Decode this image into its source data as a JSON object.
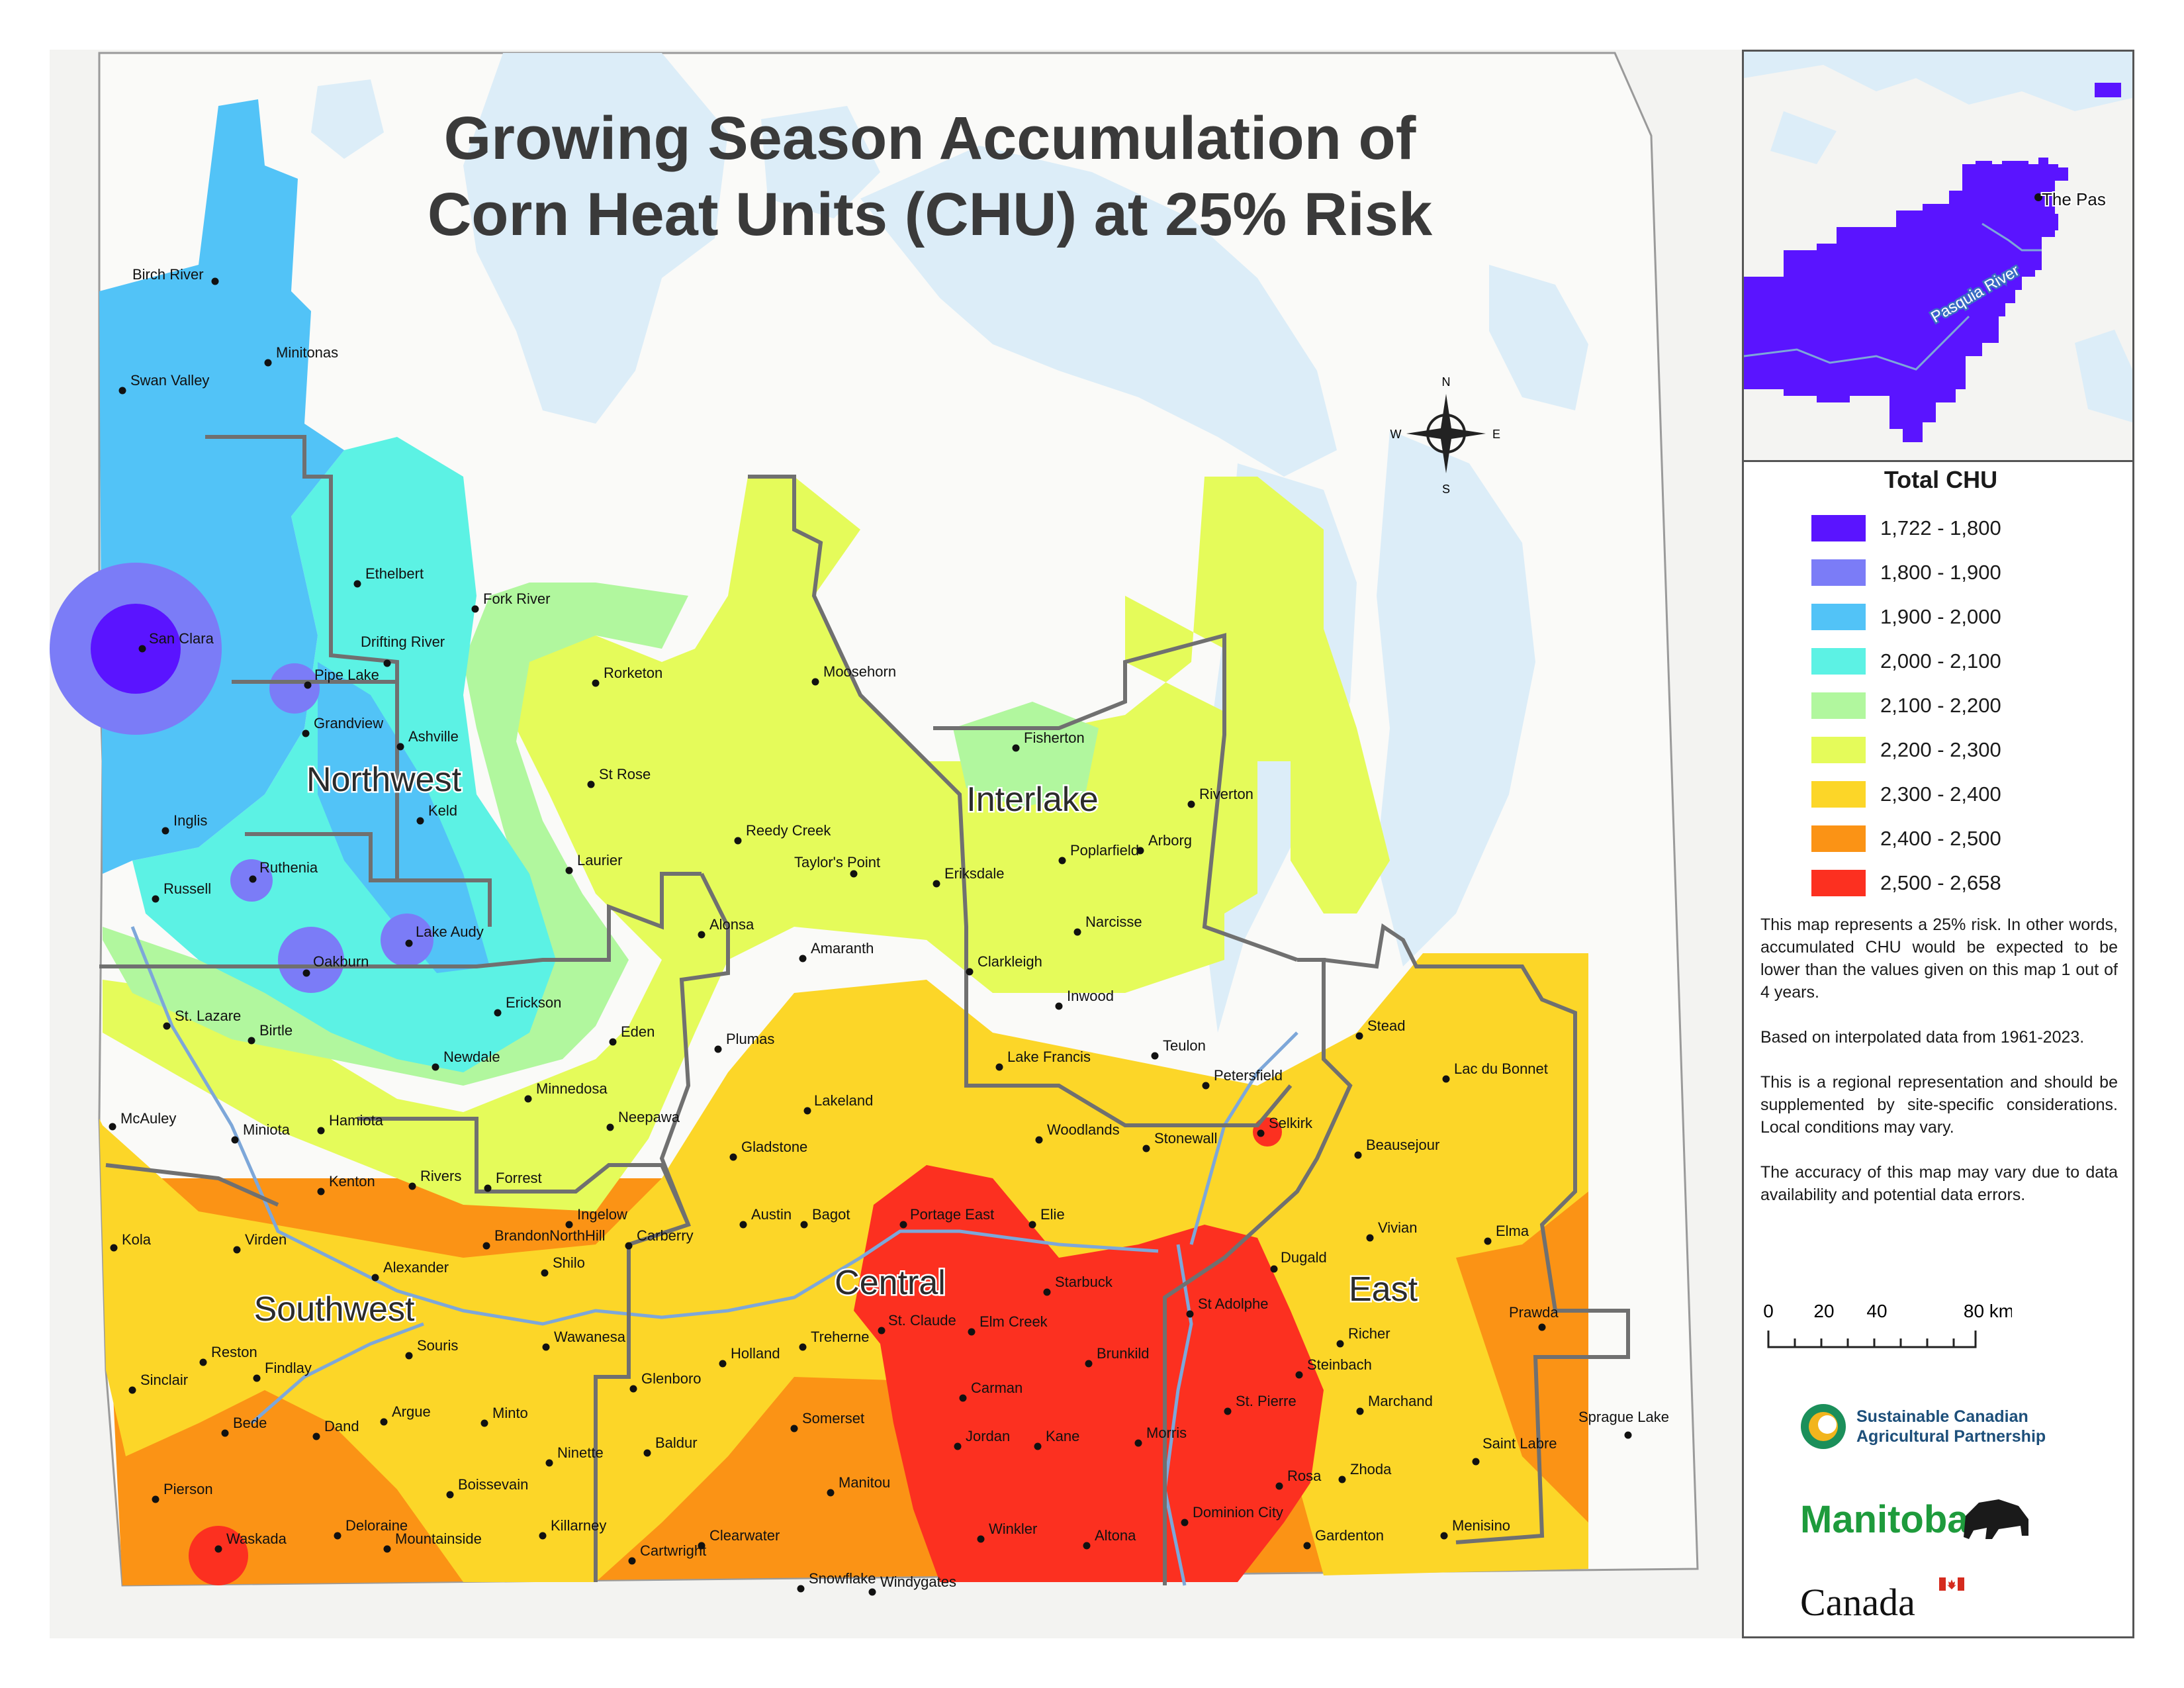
{
  "map": {
    "title_line1": "Growing Season Accumulation of",
    "title_line2": "Corn Heat Units (CHU) at 25% Risk",
    "compass": {
      "n": "N",
      "s": "S",
      "e": "E",
      "w": "W"
    },
    "regions": [
      {
        "label": "Northwest"
      },
      {
        "label": "Interlake"
      },
      {
        "label": "Central"
      },
      {
        "label": "Southwest"
      },
      {
        "label": "East"
      }
    ],
    "cities": [
      "Birch River",
      "Minitonas",
      "Swan Valley",
      "Ethelbert",
      "Fork River",
      "San Clara",
      "Drifting River",
      "Pipe Lake",
      "Rorketon",
      "Moosehorn",
      "Grandview",
      "Ashville",
      "St Rose",
      "Fisherton",
      "Riverton",
      "Keld",
      "Inglis",
      "Reedy Creek",
      "Taylor's Point",
      "Laurier",
      "Eriksdale",
      "Poplarfield",
      "Arborg",
      "Ruthenia",
      "Russell",
      "Lake Audy",
      "Alonsa",
      "Narcisse",
      "Oakburn",
      "Amaranth",
      "Clarkleigh",
      "Erickson",
      "Inwood",
      "St. Lazare",
      "Birtle",
      "Eden",
      "Plumas",
      "Stead",
      "Teulon",
      "Newdale",
      "Lake Francis",
      "Petersfield",
      "Lac du Bonnet",
      "Minnedosa",
      "Lakeland",
      "McAuley",
      "Neepawa",
      "Selkirk",
      "Miniota",
      "Hamiota",
      "Woodlands",
      "Gladstone",
      "Stonewall",
      "Beausejour",
      "Rivers",
      "Forrest",
      "Kenton",
      "Ingelow",
      "Austin",
      "Bagot",
      "Portage East",
      "Elie",
      "Vivian",
      "Elma",
      "Kola",
      "Virden",
      "BrandonNorthHill",
      "Carberry",
      "Dugald",
      "Alexander",
      "Shilo",
      "Starbuck",
      "St Adolphe",
      "Prawda",
      "Elm Creek",
      "St. Claude",
      "Wawanesa",
      "Treherne",
      "Richer",
      "Reston",
      "Souris",
      "Brunkild",
      "Holland",
      "Steinbach",
      "Findlay",
      "Glenboro",
      "Sinclair",
      "Carman",
      "St. Pierre",
      "Argue",
      "Minto",
      "Somerset",
      "Marchand",
      "Bede",
      "Dand",
      "Sprague Lake",
      "Morris",
      "Jordan",
      "Kane",
      "Baldur",
      "Ninette",
      "Saint Labre",
      "Pierson",
      "Boissevain",
      "Manitou",
      "Rosa",
      "Zhoda",
      "Dominion City",
      "Deloraine",
      "Menisino",
      "Killarney",
      "Winkler",
      "Altona",
      "Waskada",
      "Mountainside",
      "Clearwater",
      "Gardenton",
      "Cartwright",
      "Snowflake",
      "Windygates"
    ]
  },
  "inset": {
    "town": "The Pas",
    "river": "Pasquia River"
  },
  "legend": {
    "title": "Total CHU",
    "items": [
      {
        "range": "1,722 - 1,800",
        "color": "#5a14ff"
      },
      {
        "range": "1,800 - 1,900",
        "color": "#7b7cf7"
      },
      {
        "range": "1,900 - 2,000",
        "color": "#52c3f7"
      },
      {
        "range": "2,000 - 2,100",
        "color": "#5cf2e4"
      },
      {
        "range": "2,100 - 2,200",
        "color": "#b1f79e"
      },
      {
        "range": "2,200 - 2,300",
        "color": "#e5fb5a"
      },
      {
        "range": "2,300 - 2,400",
        "color": "#fcd628"
      },
      {
        "range": "2,400 - 2,500",
        "color": "#fb9315"
      },
      {
        "range": "2,500 - 2,658",
        "color": "#fc3020"
      }
    ]
  },
  "notes": [
    "This map represents a 25% risk. In other words, accumulated CHU would be expected to be lower than the values given on this map 1 out of 4 years.",
    "Based on interpolated data from 1961-2023.",
    "This is a regional representation and should be supplemented by site-specific considerations. Local conditions may vary.",
    "The accuracy of this map may vary due to data availability and potential data errors."
  ],
  "scale": {
    "ticks": [
      "0",
      "20",
      "40",
      "80 km"
    ]
  },
  "logos": {
    "scap_line1": "Sustainable Canadian",
    "scap_line2": "Agricultural Partnership",
    "manitoba": "Manitoba",
    "canada": "Canada"
  }
}
